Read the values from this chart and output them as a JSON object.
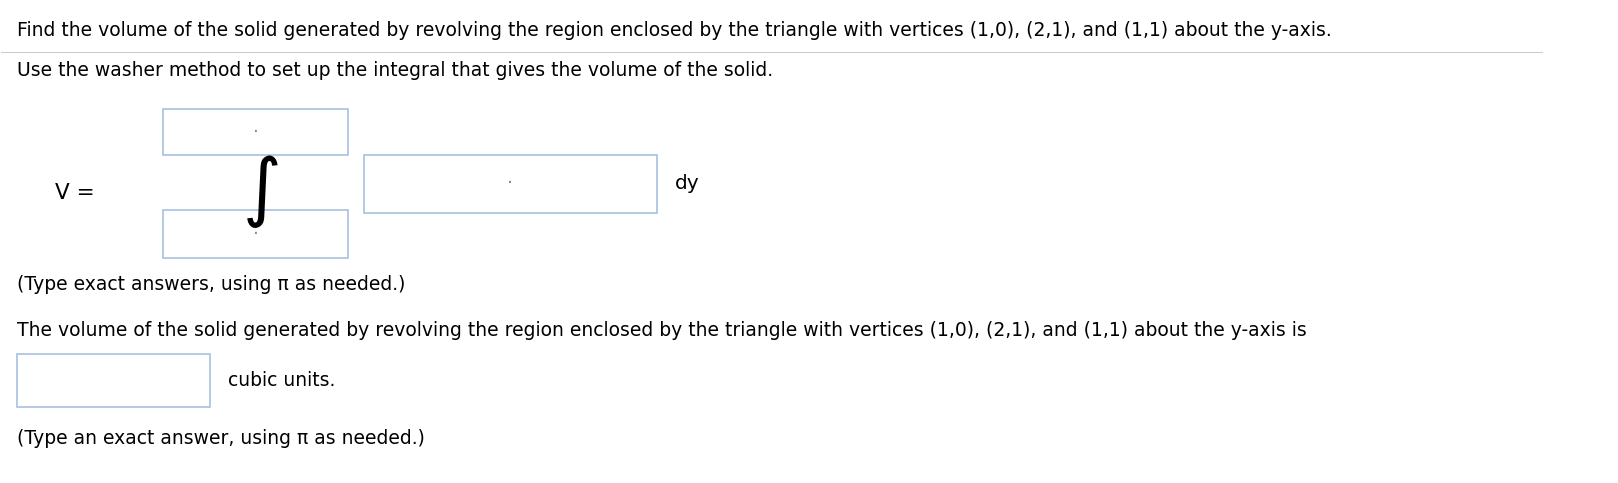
{
  "title_text": "Find the volume of the solid generated by revolving the region enclosed by the triangle with vertices (1,0), (2,1), and (1,1) about the y-axis.",
  "line2_text": "Use the washer method to set up the integral that gives the volume of the solid.",
  "v_label": "V = ",
  "dy_label": "dy",
  "type_note1": "(Type exact answers, using π as needed.)",
  "line5_text": "The volume of the solid generated by revolving the region enclosed by the triangle with vertices (1,0), (2,1), and (1,1) about the y-axis is",
  "cubic_label": "cubic units.",
  "type_note2": "(Type an exact answer, using π as needed.)",
  "bg_color": "#ffffff",
  "text_color": "#000000",
  "box_edge_color": "#a8c0e0",
  "box_face_color": "#ffffff",
  "sep_line_color": "#cccccc",
  "body_fontsize": 13.5
}
